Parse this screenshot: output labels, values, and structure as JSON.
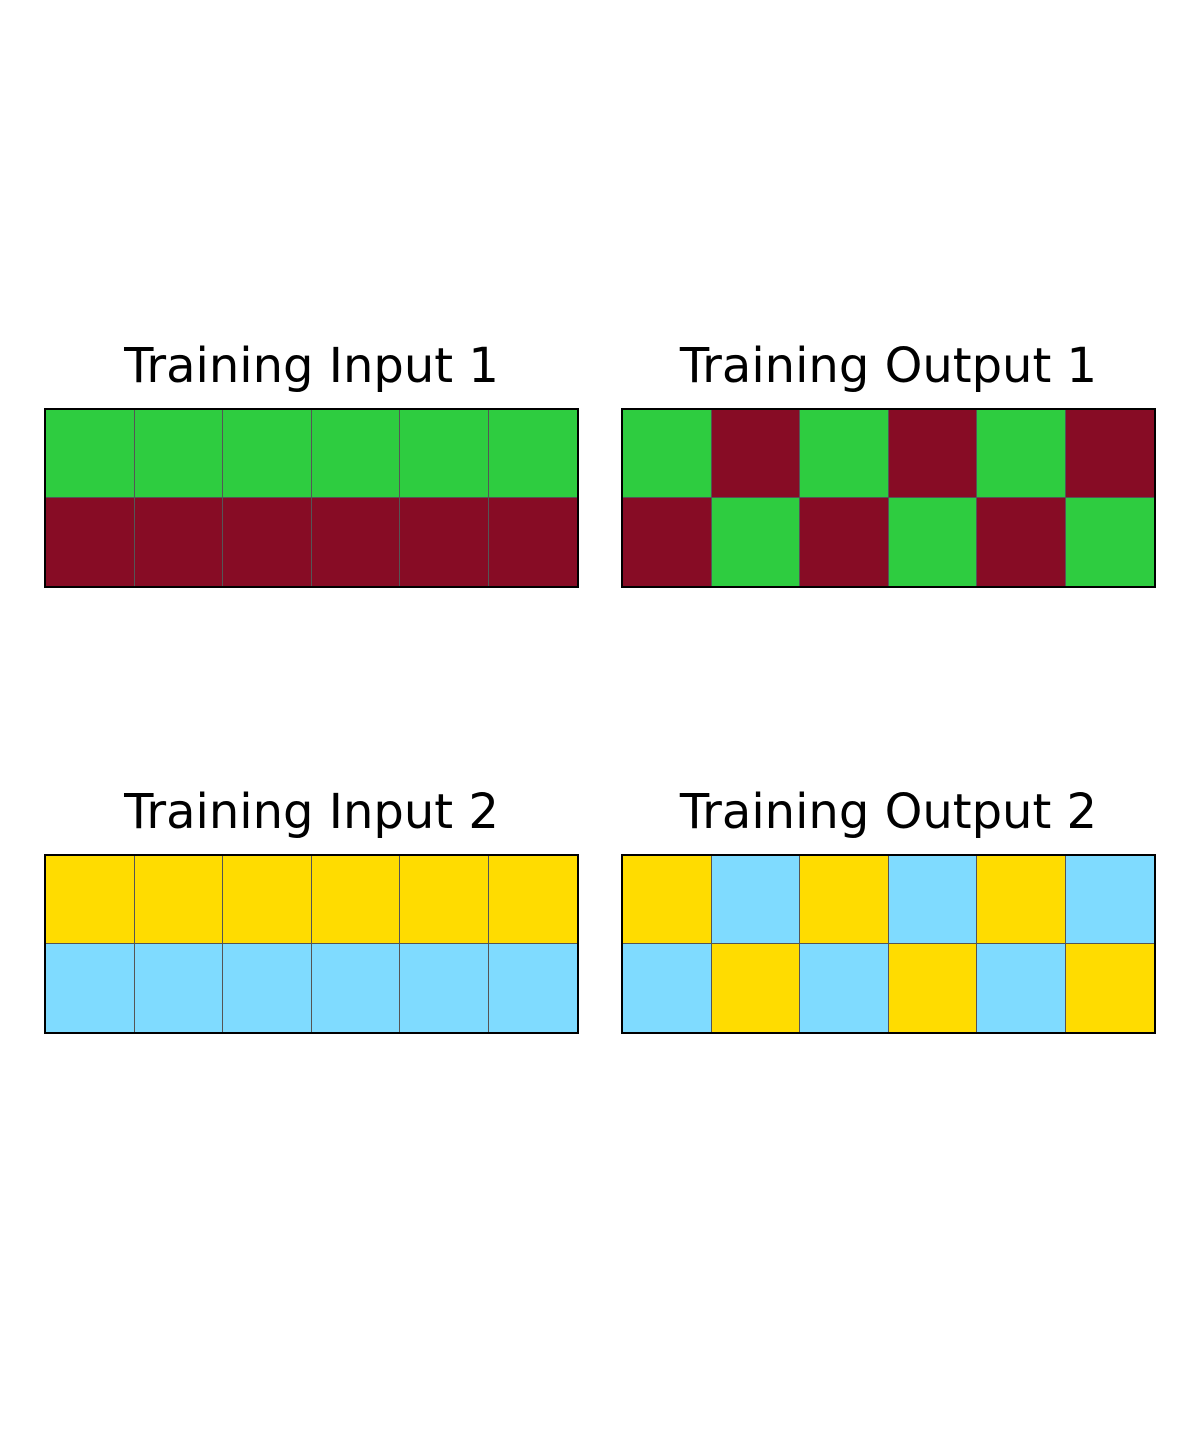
{
  "palette": {
    "1": "#2ECC40",
    "2": "#870C25",
    "3": "#FFDC00",
    "4": "#7FDBFF"
  },
  "examples": [
    {
      "input": {
        "title": "Training Input 1",
        "grid": [
          [
            1,
            1,
            1,
            1,
            1,
            1
          ],
          [
            2,
            2,
            2,
            2,
            2,
            2
          ]
        ]
      },
      "output": {
        "title": "Training Output 1",
        "grid": [
          [
            1,
            2,
            1,
            2,
            1,
            2
          ],
          [
            2,
            1,
            2,
            1,
            2,
            1
          ]
        ]
      }
    },
    {
      "input": {
        "title": "Training Input 2",
        "grid": [
          [
            3,
            3,
            3,
            3,
            3,
            3
          ],
          [
            4,
            4,
            4,
            4,
            4,
            4
          ]
        ]
      },
      "output": {
        "title": "Training Output 2",
        "grid": [
          [
            3,
            4,
            3,
            4,
            3,
            4
          ],
          [
            4,
            3,
            4,
            3,
            4,
            3
          ]
        ]
      }
    }
  ]
}
